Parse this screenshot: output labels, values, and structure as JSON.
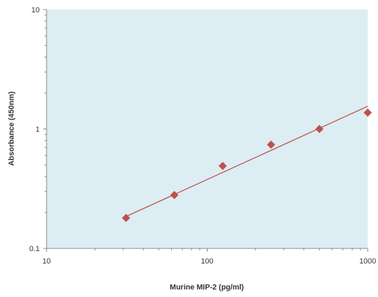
{
  "chart_data": {
    "type": "scatter",
    "title": "",
    "xlabel": "Murine MIP-2 (pg/ml)",
    "ylabel": "Absorbance (450nm)",
    "x_scale": "log",
    "y_scale": "log",
    "xlim": [
      10,
      1000
    ],
    "ylim": [
      0.1,
      10
    ],
    "x_ticks": [
      {
        "value": 10,
        "label": "10"
      },
      {
        "value": 100,
        "label": "100"
      },
      {
        "value": 1000,
        "label": "1000"
      }
    ],
    "y_ticks": [
      {
        "value": 0.1,
        "label": "0.1"
      },
      {
        "value": 1,
        "label": "1"
      },
      {
        "value": 10,
        "label": "10"
      }
    ],
    "grid": false,
    "legend": "none",
    "series": [
      {
        "x": [
          31.25,
          62.5,
          125,
          250,
          500,
          1000
        ],
        "y": [
          0.18,
          0.28,
          0.49,
          0.74,
          1.0,
          1.37
        ]
      }
    ],
    "fit_line": {
      "type": "power",
      "x": [
        31.25,
        1000
      ],
      "y": [
        0.185,
        1.55
      ]
    },
    "colors": {
      "plot_background": "#dcedf3",
      "marker": "#c0504d",
      "fit_line": "#c0504d",
      "axis": "#888888"
    }
  }
}
